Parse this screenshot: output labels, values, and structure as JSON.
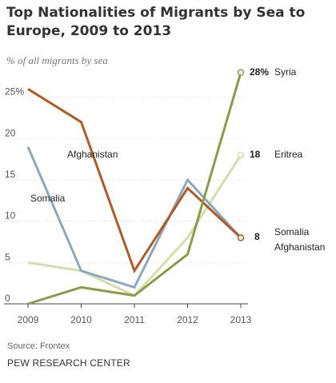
{
  "header": {
    "title": "Top Nationalities of Migrants by Sea to Europe, 2009 to 2013",
    "subtitle": "% of all migrants by sea"
  },
  "footer": {
    "source": "Source: Frontex",
    "brand": "PEW RESEARCH CENTER"
  },
  "chart_data": {
    "type": "line",
    "title": "Top Nationalities of Migrants by Sea to Europe, 2009 to 2013",
    "subtitle": "% of all migrants by sea",
    "x": [
      "2009",
      "2010",
      "2011",
      "2012",
      "2013"
    ],
    "ylim": [
      0,
      30
    ],
    "yticks": [
      "0",
      "5",
      "10",
      "15",
      "20",
      "25%"
    ],
    "grid": true,
    "series": [
      {
        "name": "Afghanistan",
        "values": [
          26,
          22,
          4,
          14,
          8
        ],
        "color": "#b15a25"
      },
      {
        "name": "Somalia",
        "values": [
          19,
          4,
          2,
          15,
          8
        ],
        "color": "#8ba9bd"
      },
      {
        "name": "Syria",
        "values": [
          0,
          2,
          1,
          6,
          28
        ],
        "color": "#8c9b48"
      },
      {
        "name": "Eritrea",
        "values": [
          5,
          4,
          1,
          8,
          18
        ],
        "color": "#d7dcaa"
      }
    ],
    "annotations": {
      "afghanistan_label": "Afghanistan",
      "somalia_label": "Somalia",
      "syria_value": "28%",
      "syria_name": "Syria",
      "eritrea_value": "18",
      "eritrea_name": "Eritrea",
      "shared_value": "8",
      "shared_name_1": "Somalia",
      "shared_name_2": "Afghanistan"
    }
  }
}
